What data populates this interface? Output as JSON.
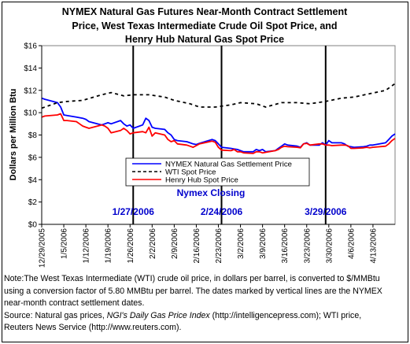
{
  "title_lines": [
    "NYMEX Natural Gas Futures Near-Month Contract Settlement",
    "Price, West Texas Intermediate Crude Oil Spot Price, and",
    "Henry Hub Natural Gas Spot Price"
  ],
  "note": {
    "line1": "Note:The West Texas Intermediate (WTI) crude oil price, in dollars per barrel,  is converted to $/MMBtu",
    "line2": "using a conversion factor of 5.80 MMBtu per barrel.  The dates marked by vertical lines are the NYMEX",
    "line3": "near-month contract settlement dates.",
    "line4_a": "Source: Natural gas prices, ",
    "line4_b": "NGI's Daily Gas Price Index",
    "line4_c": " (http://intelligencepress.com); WTI price,",
    "line5": "Reuters News Service (http://www.reuters.com)."
  },
  "chart_data": {
    "type": "line",
    "ylabel": "Dollars per Million Btu",
    "xlabel": "",
    "ylim": [
      0,
      16
    ],
    "y_ticks": [
      "$0",
      "$2",
      "$4",
      "$6",
      "$8",
      "$10",
      "$12",
      "$14",
      "$16"
    ],
    "x_tick_labels": [
      "12/29/2005",
      "1/5/2006",
      "1/12/2006",
      "1/19/2006",
      "1/26/2006",
      "2/2/2006",
      "2/9/2006",
      "2/16/2006",
      "2/23/2006",
      "3/2/2006",
      "3/9/2006",
      "3/16/2006",
      "3/23/2006",
      "3/30/2006",
      "4/6/2006",
      "4/13/2006"
    ],
    "x_start": "12/29/2005",
    "x_end": "4/20/2006",
    "series": [
      {
        "name": "NYMEX Natural Gas Settlement Price",
        "color": "#0000ff",
        "dash": "solid",
        "x": [
          "12/29/2005",
          "12/30/2005",
          "1/3/2006",
          "1/4/2006",
          "1/5/2006",
          "1/6/2006",
          "1/9/2006",
          "1/10/2006",
          "1/11/2006",
          "1/12/2006",
          "1/13/2006",
          "1/17/2006",
          "1/18/2006",
          "1/19/2006",
          "1/20/2006",
          "1/23/2006",
          "1/24/2006",
          "1/25/2006",
          "1/26/2006",
          "1/27/2006",
          "1/30/2006",
          "1/31/2006",
          "2/1/2006",
          "2/2/2006",
          "2/3/2006",
          "2/6/2006",
          "2/7/2006",
          "2/8/2006",
          "2/9/2006",
          "2/10/2006",
          "2/13/2006",
          "2/14/2006",
          "2/15/2006",
          "2/16/2006",
          "2/17/2006",
          "2/21/2006",
          "2/22/2006",
          "2/23/2006",
          "2/24/2006",
          "2/27/2006",
          "2/28/2006",
          "3/1/2006",
          "3/2/2006",
          "3/3/2006",
          "3/6/2006",
          "3/7/2006",
          "3/8/2006",
          "3/9/2006",
          "3/10/2006",
          "3/13/2006",
          "3/14/2006",
          "3/15/2006",
          "3/16/2006",
          "3/17/2006",
          "3/20/2006",
          "3/21/2006",
          "3/22/2006",
          "3/23/2006",
          "3/24/2006",
          "3/27/2006",
          "3/28/2006",
          "3/29/2006",
          "3/30/2006",
          "3/31/2006",
          "4/3/2006",
          "4/4/2006",
          "4/5/2006",
          "4/6/2006",
          "4/7/2006",
          "4/10/2006",
          "4/11/2006",
          "4/12/2006",
          "4/13/2006",
          "4/17/2006",
          "4/18/2006",
          "4/19/2006",
          "4/20/2006"
        ],
        "values": [
          11.3,
          11.2,
          10.9,
          10.5,
          9.8,
          9.75,
          9.6,
          9.55,
          9.5,
          9.4,
          9.2,
          8.9,
          9.0,
          9.1,
          9.0,
          9.3,
          9.0,
          8.8,
          8.9,
          8.6,
          8.9,
          9.5,
          9.3,
          8.7,
          8.6,
          8.5,
          8.2,
          8.0,
          7.6,
          7.5,
          7.4,
          7.3,
          7.2,
          7.15,
          7.25,
          7.6,
          7.5,
          7.2,
          6.9,
          6.8,
          6.75,
          6.7,
          6.6,
          6.5,
          6.5,
          6.7,
          6.6,
          6.7,
          6.5,
          6.6,
          6.8,
          7.0,
          7.2,
          7.1,
          7.0,
          6.9,
          7.2,
          7.3,
          7.1,
          7.1,
          7.3,
          7.1,
          7.5,
          7.3,
          7.3,
          7.2,
          7.0,
          6.95,
          6.9,
          6.95,
          7.0,
          7.1,
          7.1,
          7.3,
          7.6,
          7.9,
          8.1
        ]
      },
      {
        "name": "WTI Spot Price",
        "color": "#000000",
        "dash": "dashed",
        "x": [
          "12/29/2005",
          "1/3/2006",
          "1/6/2006",
          "1/11/2006",
          "1/17/2006",
          "1/20/2006",
          "1/24/2006",
          "1/27/2006",
          "2/1/2006",
          "2/6/2006",
          "2/9/2006",
          "2/14/2006",
          "2/17/2006",
          "2/22/2006",
          "2/27/2006",
          "3/2/2006",
          "3/7/2006",
          "3/10/2006",
          "3/15/2006",
          "3/20/2006",
          "3/24/2006",
          "3/29/2006",
          "4/3/2006",
          "4/7/2006",
          "4/12/2006",
          "4/17/2006",
          "4/20/2006"
        ],
        "values": [
          10.4,
          10.9,
          11.0,
          11.1,
          11.6,
          11.8,
          11.5,
          11.6,
          11.6,
          11.4,
          11.1,
          10.8,
          10.5,
          10.5,
          10.7,
          10.9,
          10.8,
          10.5,
          10.9,
          10.9,
          10.8,
          11.0,
          11.3,
          11.4,
          11.7,
          12.0,
          12.6
        ]
      },
      {
        "name": "Henry Hub Spot Price",
        "color": "#ff0000",
        "dash": "solid",
        "x": [
          "12/29/2005",
          "12/30/2005",
          "1/3/2006",
          "1/4/2006",
          "1/5/2006",
          "1/6/2006",
          "1/9/2006",
          "1/10/2006",
          "1/11/2006",
          "1/12/2006",
          "1/13/2006",
          "1/17/2006",
          "1/18/2006",
          "1/19/2006",
          "1/20/2006",
          "1/23/2006",
          "1/24/2006",
          "1/25/2006",
          "1/26/2006",
          "1/27/2006",
          "1/30/2006",
          "1/31/2006",
          "2/1/2006",
          "2/2/2006",
          "2/3/2006",
          "2/6/2006",
          "2/7/2006",
          "2/8/2006",
          "2/9/2006",
          "2/10/2006",
          "2/13/2006",
          "2/14/2006",
          "2/15/2006",
          "2/16/2006",
          "2/17/2006",
          "2/21/2006",
          "2/22/2006",
          "2/23/2006",
          "2/24/2006",
          "2/27/2006",
          "2/28/2006",
          "3/1/2006",
          "3/2/2006",
          "3/3/2006",
          "3/6/2006",
          "3/7/2006",
          "3/8/2006",
          "3/9/2006",
          "3/10/2006",
          "3/13/2006",
          "3/14/2006",
          "3/15/2006",
          "3/16/2006",
          "3/17/2006",
          "3/20/2006",
          "3/21/2006",
          "3/22/2006",
          "3/23/2006",
          "3/24/2006",
          "3/27/2006",
          "3/28/2006",
          "3/29/2006",
          "3/30/2006",
          "3/31/2006",
          "4/3/2006",
          "4/4/2006",
          "4/5/2006",
          "4/6/2006",
          "4/7/2006",
          "4/10/2006",
          "4/11/2006",
          "4/12/2006",
          "4/13/2006",
          "4/17/2006",
          "4/18/2006",
          "4/19/2006",
          "4/20/2006"
        ],
        "values": [
          9.6,
          9.7,
          9.8,
          9.9,
          9.3,
          9.3,
          9.2,
          9.0,
          8.8,
          8.7,
          8.6,
          8.9,
          8.8,
          8.6,
          8.2,
          8.4,
          8.6,
          8.4,
          8.1,
          8.2,
          8.3,
          8.2,
          8.7,
          7.9,
          8.2,
          8.0,
          7.6,
          7.4,
          7.5,
          7.2,
          7.1,
          7.0,
          6.9,
          7.05,
          7.2,
          7.45,
          7.35,
          6.9,
          6.65,
          6.6,
          6.7,
          6.5,
          6.5,
          6.4,
          6.35,
          6.5,
          6.5,
          6.4,
          6.45,
          6.6,
          6.7,
          6.9,
          7.0,
          6.95,
          6.9,
          6.85,
          7.2,
          7.25,
          7.1,
          7.2,
          7.2,
          7.1,
          7.1,
          7.05,
          7.1,
          7.1,
          7.05,
          6.8,
          6.8,
          6.85,
          6.9,
          6.85,
          6.9,
          7.0,
          7.2,
          7.5,
          7.7
        ]
      }
    ],
    "vlines": [
      {
        "x": "1/27/2006",
        "label": "1/27/2006"
      },
      {
        "x": "2/24/2006",
        "label": "2/24/2006"
      },
      {
        "x": "3/29/2006",
        "label": "3/29/2006"
      }
    ],
    "annotation": "Nymex Closing",
    "legend_position": "center-inside",
    "grid": false
  },
  "colors": {
    "annotation": "#0000cc",
    "plot_background": "#ffffff"
  }
}
